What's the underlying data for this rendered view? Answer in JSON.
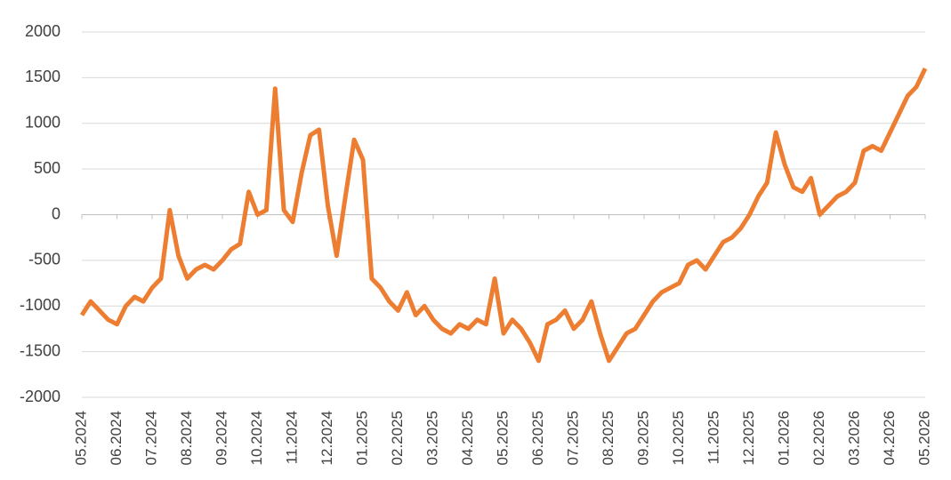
{
  "chart_data": {
    "type": "line",
    "categories": [
      "05.2024",
      null,
      null,
      null,
      "06.2024",
      null,
      null,
      null,
      "07.2024",
      null,
      null,
      null,
      "08.2024",
      null,
      null,
      null,
      "09.2024",
      null,
      null,
      null,
      "10.2024",
      null,
      null,
      null,
      "11.2024",
      null,
      null,
      null,
      "12.2024",
      null,
      null,
      null,
      "01.2025",
      null,
      null,
      null,
      "02.2025",
      null,
      null,
      null,
      "03.2025",
      null,
      null,
      null,
      "04.2025",
      null,
      null,
      null,
      "05.2025",
      null,
      null,
      null,
      "06.2025",
      null,
      null,
      null,
      "07.2025",
      null,
      null,
      null,
      "08.2025",
      null,
      null,
      null,
      "09.2025",
      null,
      null,
      null,
      "10.2025",
      null,
      null,
      null,
      "11.2025",
      null,
      null,
      null,
      "12.2025",
      null,
      null,
      null,
      "01.2026",
      null,
      null,
      null,
      "02.2026",
      null,
      null,
      null,
      "03.2026",
      null,
      null,
      null,
      "04.2026",
      null,
      null,
      null,
      "05.2026"
    ],
    "series": [
      {
        "color": "#ed7d31",
        "values": [
          -1100,
          -950,
          -1050,
          -1150,
          -1200,
          -1000,
          -900,
          -950,
          -800,
          -700,
          50,
          -450,
          -700,
          -600,
          -550,
          -600,
          -500,
          -380,
          -320,
          250,
          0,
          50,
          1380,
          50,
          -80,
          450,
          870,
          930,
          100,
          -450,
          200,
          820,
          600,
          -700,
          -800,
          -950,
          -1050,
          -850,
          -1100,
          -1000,
          -1150,
          -1250,
          -1300,
          -1200,
          -1250,
          -1150,
          -1200,
          -700,
          -1300,
          -1150,
          -1250,
          -1400,
          -1600,
          -1200,
          -1150,
          -1050,
          -1250,
          -1150,
          -950,
          -1300,
          -1600,
          -1450,
          -1300,
          -1250,
          -1100,
          -950,
          -850,
          -800,
          -750,
          -550,
          -500,
          -600,
          -450,
          -300,
          -250,
          -150,
          0,
          200,
          350,
          900,
          550,
          300,
          250,
          400,
          0,
          100,
          200,
          250,
          350,
          700,
          750,
          700,
          900,
          1100,
          1300,
          1400,
          1600
        ]
      }
    ],
    "ylim": [
      -2000,
      2000
    ],
    "yticks": [
      -2000,
      -1500,
      -1000,
      -500,
      0,
      500,
      1000,
      1500,
      2000
    ],
    "grid": true
  }
}
